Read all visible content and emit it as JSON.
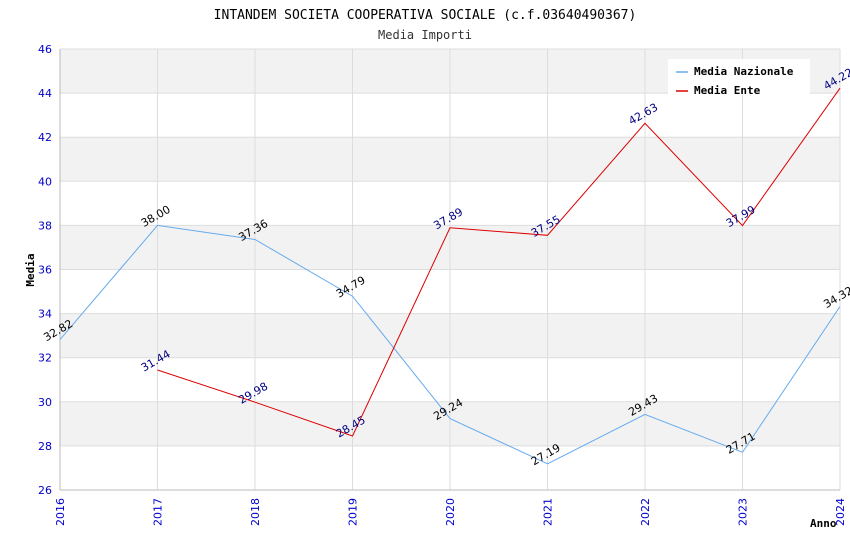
{
  "chart_data": {
    "type": "line",
    "title": "INTANDEM SOCIETA COOPERATIVA SOCIALE (c.f.03640490367)",
    "subtitle": "Media Importi",
    "xlabel": "Anno",
    "ylabel": "Media",
    "ylim": [
      26,
      46
    ],
    "yticks": [
      26,
      28,
      30,
      32,
      34,
      36,
      38,
      40,
      42,
      44,
      46
    ],
    "categories": [
      "2016",
      "2017",
      "2018",
      "2019",
      "2020",
      "2021",
      "2022",
      "2023",
      "2024"
    ],
    "legend_position": "top-right",
    "series": [
      {
        "name": "Media Nazionale",
        "color": "#66aaee",
        "label_color": "#000000",
        "values": [
          32.82,
          38.0,
          37.36,
          34.79,
          29.24,
          27.19,
          29.43,
          27.71,
          34.32
        ],
        "labels": [
          "32.82",
          "38.00",
          "37.36",
          "34.79",
          "29.24",
          "27.19",
          "29.43",
          "27.71",
          "34.32"
        ]
      },
      {
        "name": "Media Ente",
        "color": "#dd0000",
        "label_color": "#000080",
        "values": [
          null,
          31.44,
          29.98,
          28.45,
          37.89,
          37.55,
          42.63,
          37.99,
          44.22
        ],
        "labels": [
          null,
          "31.44",
          "29.98",
          "28.45",
          "37.89",
          "37.55",
          "42.63",
          "37.99",
          "44.22"
        ]
      }
    ]
  }
}
